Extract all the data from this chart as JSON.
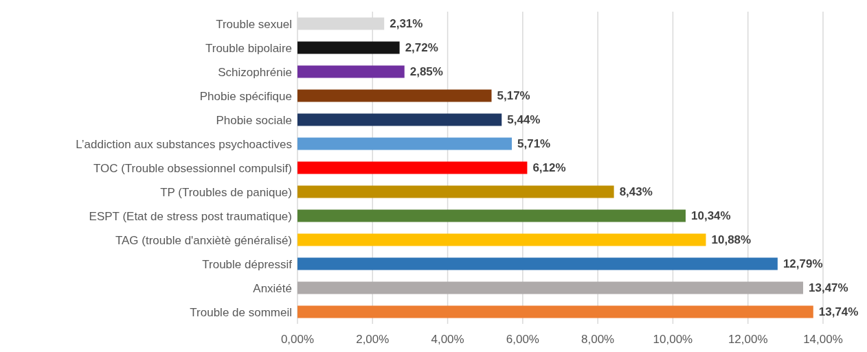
{
  "chart_data": {
    "type": "bar",
    "orientation": "horizontal",
    "categories": [
      "Trouble sexuel",
      "Trouble bipolaire",
      "Schizophrénie",
      "Phobie spécifique",
      "Phobie sociale",
      "L’addiction aux substances psychoactives",
      "TOC (Trouble obsessionnel compulsif)",
      "TP (Troubles de panique)",
      "ESPT (Etat de stress post traumatique)",
      "TAG (trouble d'anxiètè généralisé)",
      "Trouble dépressif",
      "Anxiété",
      "Trouble de sommeil"
    ],
    "values": [
      2.31,
      2.72,
      2.85,
      5.17,
      5.44,
      5.71,
      6.12,
      8.43,
      10.34,
      10.88,
      12.79,
      13.47,
      13.74
    ],
    "colors": [
      "#d9d9d9",
      "#141414",
      "#7030a0",
      "#843c0c",
      "#1f3864",
      "#5b9bd5",
      "#ff0000",
      "#bf8f00",
      "#548235",
      "#ffc000",
      "#2e75b6",
      "#aeaaaa",
      "#ed7d31"
    ],
    "value_labels": [
      "2,31%",
      "2,72%",
      "2,85%",
      "5,17%",
      "5,44%",
      "5,71%",
      "6,12%",
      "8,43%",
      "10,34%",
      "10,88%",
      "12,79%",
      "13,47%",
      "13,74%"
    ],
    "xlim": [
      0,
      14
    ],
    "xticks": [
      {
        "value": 0,
        "label": "0,00%"
      },
      {
        "value": 2,
        "label": "2,00%"
      },
      {
        "value": 4,
        "label": "4,00%"
      },
      {
        "value": 6,
        "label": "6,00%"
      },
      {
        "value": 8,
        "label": "8,00%"
      },
      {
        "value": 10,
        "label": "10,00%"
      },
      {
        "value": 12,
        "label": "12,00%"
      },
      {
        "value": 14,
        "label": "14,00%"
      }
    ],
    "grid": "x"
  }
}
